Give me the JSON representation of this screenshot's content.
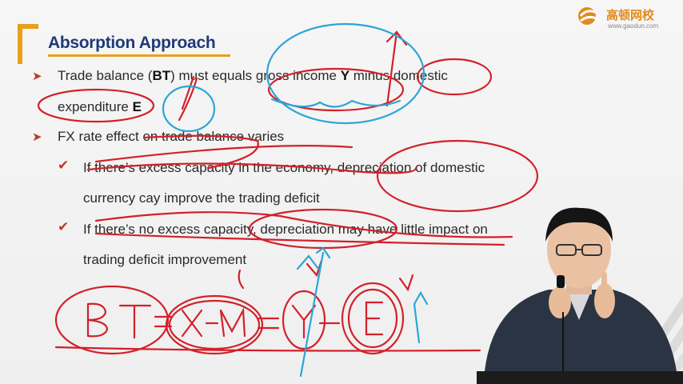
{
  "slide": {
    "title": "Absorption Approach",
    "bullets": [
      {
        "text_1": "Trade balance (",
        "bold_1": "BT",
        "text_2": ") must equals gross income ",
        "bold_2": "Y",
        "text_3": " minus domestic"
      },
      {
        "text_1": "expenditure ",
        "bold_1": "E"
      },
      {
        "text_1": "FX rate effect on trade balance varies"
      }
    ],
    "sub_bullets": [
      {
        "line1": "If there’s excess capacity in the economy, depreciation of domestic",
        "line2": "currency cay improve the trading deficit"
      },
      {
        "line1": "If there’s no excess capacity, depreciation may have little impact on",
        "line2": "trading deficit improvement"
      }
    ],
    "handwritten_equation": "BT = X − M = Y − E"
  },
  "logo": {
    "name": "高顿网校",
    "url": "www.gaodun.com"
  },
  "colors": {
    "title": "#1f3a7a",
    "accent": "#e8a01a",
    "bullet": "#c0392b",
    "ink_red": "#d3202a",
    "ink_blue": "#2aa6d6"
  },
  "icons": [
    "arrow-bullet-icon",
    "check-icon",
    "gaodun-logo-icon"
  ]
}
